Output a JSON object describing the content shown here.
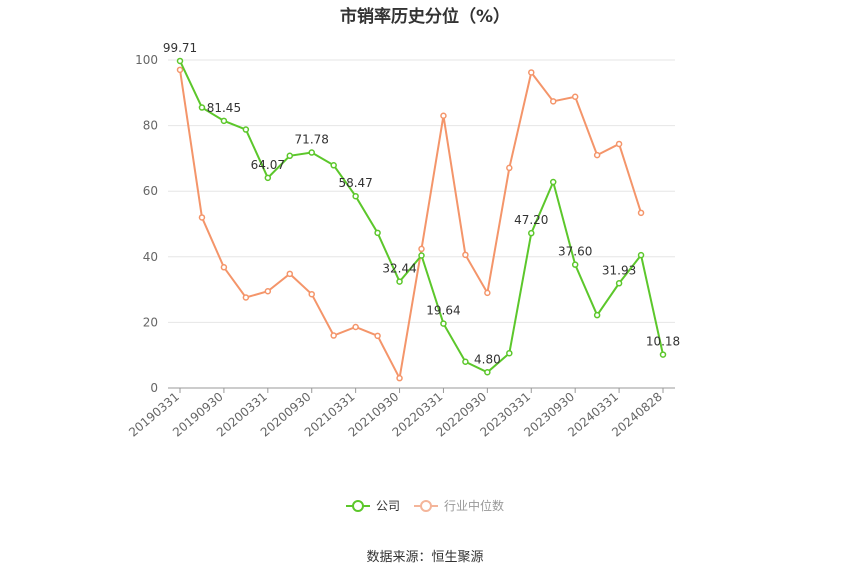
{
  "chart_data": {
    "type": "line",
    "title": "市销率历史分位（%）",
    "ylim": [
      0,
      100
    ],
    "yticks": [
      0,
      20,
      40,
      60,
      80,
      100
    ],
    "xtick_labels": [
      "20190331",
      "20190930",
      "20200331",
      "20200930",
      "20210331",
      "20210930",
      "20220331",
      "20220930",
      "20230331",
      "20230930",
      "20240331",
      "20240828"
    ],
    "x": [
      "20190331",
      "20190630",
      "20190930",
      "20191231",
      "20200331",
      "20200630",
      "20200930",
      "20201231",
      "20210331",
      "20210630",
      "20210930",
      "20211231",
      "20220331",
      "20220630",
      "20220930",
      "20221231",
      "20230331",
      "20230630",
      "20230930",
      "20231231",
      "20240331",
      "20240630",
      "20240828"
    ],
    "series": [
      {
        "name": "公司",
        "color": "#5cc72b",
        "values": [
          99.71,
          85.5,
          81.45,
          78.8,
          64.07,
          70.8,
          71.78,
          67.9,
          58.47,
          47.3,
          32.44,
          40.4,
          19.64,
          8.0,
          4.8,
          10.6,
          47.2,
          62.8,
          37.6,
          22.2,
          31.93,
          40.5,
          10.18
        ]
      },
      {
        "name": "行业中位数",
        "color": "#f4956a",
        "values": [
          97.0,
          52.0,
          36.8,
          27.6,
          29.5,
          34.8,
          28.6,
          16.0,
          18.6,
          15.9,
          3.0,
          42.4,
          83.0,
          40.6,
          29.0,
          67.1,
          96.2,
          87.4,
          88.8,
          71.0,
          74.4,
          53.4,
          null
        ]
      }
    ],
    "data_labels": [
      {
        "series": 0,
        "index": 0,
        "text": "99.71"
      },
      {
        "series": 0,
        "index": 2,
        "text": "81.45"
      },
      {
        "series": 0,
        "index": 4,
        "text": "64.07"
      },
      {
        "series": 0,
        "index": 6,
        "text": "71.78"
      },
      {
        "series": 0,
        "index": 8,
        "text": "58.47"
      },
      {
        "series": 0,
        "index": 10,
        "text": "32.44"
      },
      {
        "series": 0,
        "index": 12,
        "text": "19.64"
      },
      {
        "series": 0,
        "index": 14,
        "text": "4.80"
      },
      {
        "series": 0,
        "index": 16,
        "text": "47.20"
      },
      {
        "series": 0,
        "index": 18,
        "text": "37.60"
      },
      {
        "series": 0,
        "index": 20,
        "text": "31.93"
      },
      {
        "series": 0,
        "index": 22,
        "text": "10.18"
      }
    ],
    "grid": true,
    "legend_position": "bottom"
  },
  "legend": {
    "company_label": "公司",
    "industry_label": "行业中位数"
  },
  "source": "数据来源：恒生聚源"
}
